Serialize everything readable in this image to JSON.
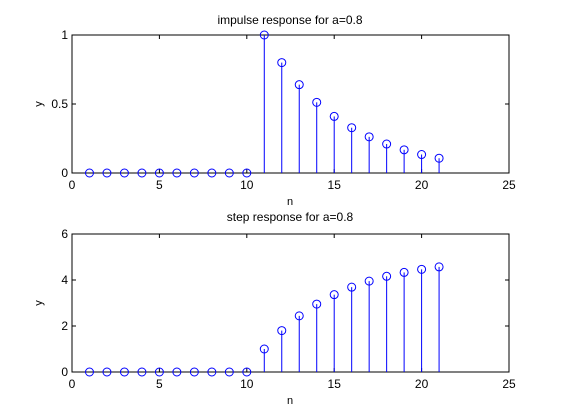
{
  "chart_data": [
    {
      "type": "stem",
      "title": "impulse response for a=0.8",
      "xlabel": "n",
      "ylabel": "y",
      "xlim": [
        0,
        25
      ],
      "ylim": [
        0,
        1
      ],
      "xticks": [
        0,
        5,
        10,
        15,
        20,
        25
      ],
      "yticks": [
        0,
        0.5,
        1
      ],
      "xtick_labels": [
        "0",
        "5",
        "10",
        "15",
        "20",
        "25"
      ],
      "ytick_labels": [
        "0",
        "0.5",
        "1"
      ],
      "color": "#0000ff",
      "x": [
        1,
        2,
        3,
        4,
        5,
        6,
        7,
        8,
        9,
        10,
        11,
        12,
        13,
        14,
        15,
        16,
        17,
        18,
        19,
        20,
        21
      ],
      "y": [
        0,
        0,
        0,
        0,
        0,
        0,
        0,
        0,
        0,
        0,
        1,
        0.8,
        0.64,
        0.512,
        0.41,
        0.328,
        0.262,
        0.21,
        0.168,
        0.134,
        0.107
      ],
      "grid": false
    },
    {
      "type": "stem",
      "title": "step response for a=0.8",
      "xlabel": "n",
      "ylabel": "y",
      "xlim": [
        0,
        25
      ],
      "ylim": [
        0,
        6
      ],
      "xticks": [
        0,
        5,
        10,
        15,
        20,
        25
      ],
      "yticks": [
        0,
        2,
        4,
        6
      ],
      "xtick_labels": [
        "0",
        "5",
        "10",
        "15",
        "20",
        "25"
      ],
      "ytick_labels": [
        "0",
        "2",
        "4",
        "6"
      ],
      "color": "#0000ff",
      "x": [
        1,
        2,
        3,
        4,
        5,
        6,
        7,
        8,
        9,
        10,
        11,
        12,
        13,
        14,
        15,
        16,
        17,
        18,
        19,
        20,
        21
      ],
      "y": [
        0,
        0,
        0,
        0,
        0,
        0,
        0,
        0,
        0,
        0,
        1,
        1.8,
        2.44,
        2.952,
        3.362,
        3.689,
        3.951,
        4.161,
        4.329,
        4.463,
        4.57
      ],
      "grid": false
    }
  ]
}
